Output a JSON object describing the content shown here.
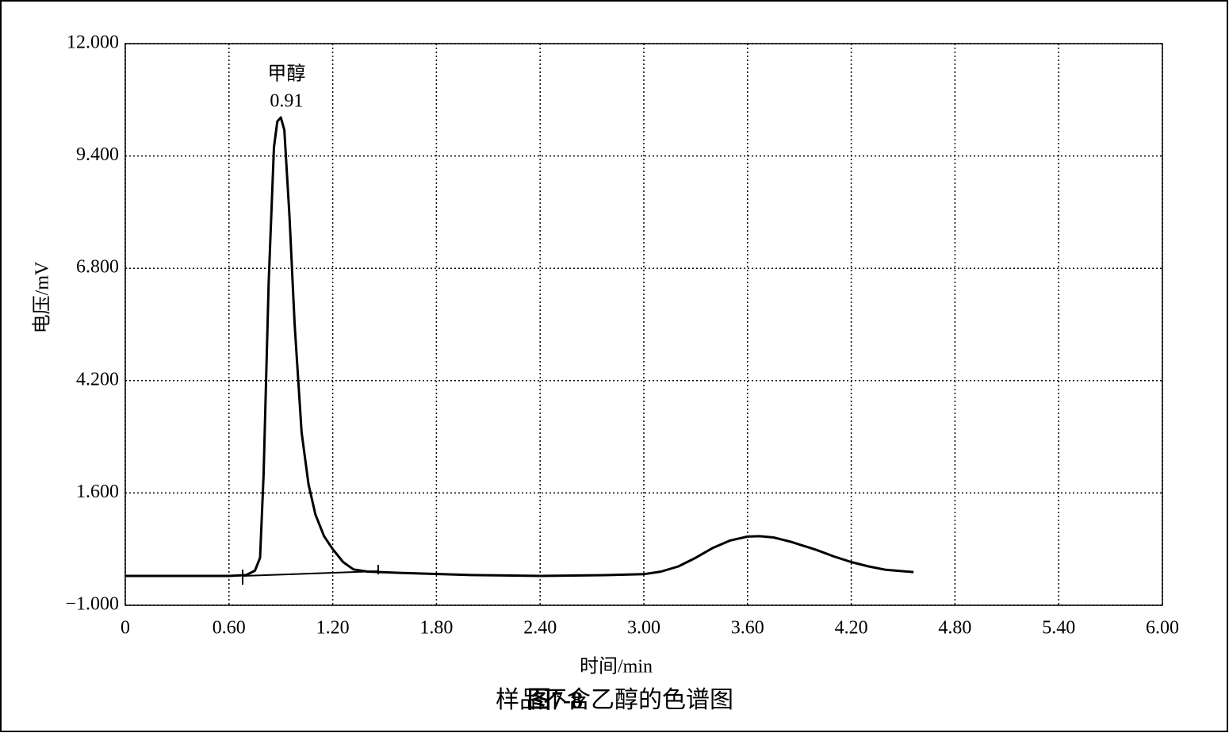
{
  "chart_data": {
    "type": "line",
    "annotation": {
      "name": "甲醇",
      "time": "0.91",
      "x": 0.91
    },
    "ylabel": "电压/mV",
    "xlabel": "时间/min",
    "caption_label": "图7-8",
    "caption_text": "样品不含乙醇的色谱图",
    "x": [
      0,
      0.3,
      0.6,
      0.7,
      0.75,
      0.78,
      0.8,
      0.83,
      0.86,
      0.88,
      0.9,
      0.92,
      0.95,
      0.98,
      1.02,
      1.06,
      1.1,
      1.15,
      1.2,
      1.26,
      1.32,
      1.4,
      1.6,
      2.0,
      2.4,
      2.8,
      3.0,
      3.1,
      3.2,
      3.3,
      3.4,
      3.5,
      3.6,
      3.67,
      3.75,
      3.85,
      4.0,
      4.1,
      4.2,
      4.3,
      4.4,
      4.56
    ],
    "values": [
      -0.32,
      -0.32,
      -0.32,
      -0.3,
      -0.2,
      0.1,
      2.0,
      6.5,
      9.6,
      10.2,
      10.29,
      10.0,
      8.0,
      5.5,
      3.0,
      1.8,
      1.1,
      0.6,
      0.3,
      0.0,
      -0.17,
      -0.22,
      -0.25,
      -0.3,
      -0.32,
      -0.3,
      -0.28,
      -0.22,
      -0.1,
      0.1,
      0.33,
      0.5,
      0.59,
      0.6,
      0.57,
      0.47,
      0.28,
      0.13,
      0.0,
      -0.1,
      -0.18,
      -0.23
    ],
    "color": "#000000",
    "xlim": [
      0,
      6
    ],
    "xticks": [
      0,
      {
        "value": 0.6,
        "label": "0.60"
      },
      {
        "value": 1.2,
        "label": "1.20"
      },
      {
        "value": 1.8,
        "label": "1.80"
      },
      {
        "value": 2.4,
        "label": "2.40"
      },
      {
        "value": 3.0,
        "label": "3.00"
      },
      {
        "value": 3.6,
        "label": "3.60"
      },
      {
        "value": 4.2,
        "label": "4.20"
      },
      {
        "value": 4.8,
        "label": "4.80"
      },
      {
        "value": 5.4,
        "label": "5.40"
      },
      {
        "value": 6.0,
        "label": "6.00"
      }
    ],
    "ylim": [
      -1,
      12
    ],
    "yticks": [
      {
        "value": -1,
        "label": "−1.000"
      },
      {
        "value": 1.6,
        "label": "1.600"
      },
      {
        "value": 4.2,
        "label": "4.200"
      },
      {
        "value": 6.8,
        "label": "6.800"
      },
      {
        "value": 9.4,
        "label": "9.400"
      },
      {
        "value": 12,
        "label": "12.000"
      }
    ],
    "grid": true
  }
}
